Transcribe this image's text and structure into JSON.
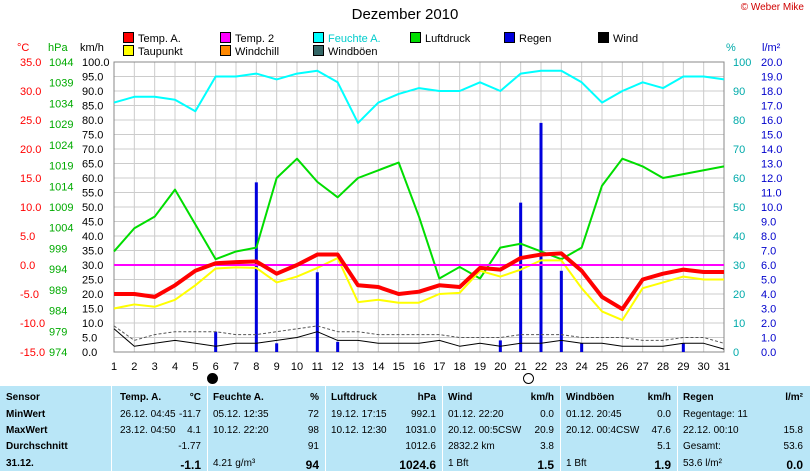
{
  "title": "Dezember 2010",
  "credit": "© Weber Mike",
  "legend": [
    {
      "label": "Temp. A.",
      "color": "#ff0000"
    },
    {
      "label": "Temp. 2",
      "color": "#ff00ff"
    },
    {
      "label": "Feuchte A.",
      "color": "#00ffff"
    },
    {
      "label": "Luftdruck",
      "color": "#00dd00"
    },
    {
      "label": "Regen",
      "color": "#0000dd"
    },
    {
      "label": "Wind",
      "color": "#000000"
    },
    {
      "label": "Taupunkt",
      "color": "#ffff00"
    },
    {
      "label": "Windchill",
      "color": "#ff8800"
    },
    {
      "label": "Windböen",
      "color": "#336666"
    }
  ],
  "axis_units": {
    "temp": "°C",
    "pressure": "hPa",
    "wind": "km/h",
    "humidity": "%",
    "rain": "l/m²"
  },
  "chart_data": {
    "type": "line",
    "title": "Dezember 2010",
    "x": [
      1,
      2,
      3,
      4,
      5,
      6,
      7,
      8,
      9,
      10,
      11,
      12,
      13,
      14,
      15,
      16,
      17,
      18,
      19,
      20,
      21,
      22,
      23,
      24,
      25,
      26,
      27,
      28,
      29,
      30,
      31
    ],
    "axes": {
      "temp": {
        "range": [
          -15,
          35
        ],
        "ticks": [
          "35.0",
          "30.0",
          "25.0",
          "20.0",
          "15.0",
          "10.0",
          "5.0",
          "0.0",
          "-5.0",
          "-10.0",
          "-15.0"
        ]
      },
      "pressure": {
        "range": [
          974,
          1049
        ],
        "ticks": [
          "1044",
          "1039",
          "1034",
          "1029",
          "1024",
          "1019",
          "1014",
          "1009",
          "1004",
          "999",
          "994",
          "989",
          "984",
          "979",
          "974"
        ]
      },
      "wind": {
        "range": [
          0,
          100
        ],
        "ticks": [
          "100.0",
          "95.0",
          "90.0",
          "85.0",
          "80.0",
          "75.0",
          "70.0",
          "65.0",
          "60.0",
          "55.0",
          "50.0",
          "45.0",
          "40.0",
          "35.0",
          "30.0",
          "25.0",
          "20.0",
          "15.0",
          "10.0",
          "5.0",
          "0.0"
        ]
      },
      "humidity": {
        "range": [
          0,
          100
        ],
        "ticks": [
          "100",
          "90",
          "80",
          "70",
          "60",
          "50",
          "40",
          "30",
          "20",
          "10",
          "0"
        ]
      },
      "rain": {
        "range": [
          0,
          20
        ],
        "ticks": [
          "20.0",
          "19.0",
          "18.0",
          "17.0",
          "16.0",
          "15.0",
          "14.0",
          "13.0",
          "12.0",
          "11.0",
          "10.0",
          "9.0",
          "8.0",
          "7.0",
          "6.0",
          "5.0",
          "4.0",
          "3.0",
          "2.0",
          "1.0",
          "0.0"
        ]
      }
    },
    "series": [
      {
        "name": "Luftdruck",
        "axis": "pressure",
        "color": "#00dd00",
        "values": [
          1000,
          1006,
          1009,
          1016,
          1007,
          998,
          1000,
          1001,
          1019,
          1024,
          1018,
          1014,
          1019,
          1021,
          1023,
          1009,
          993,
          996,
          993,
          1001,
          1002,
          1000,
          998,
          1001,
          1017,
          1024,
          1022,
          1019,
          1020,
          1021,
          1022
        ]
      },
      {
        "name": "Feuchte A.",
        "axis": "humidity",
        "color": "#00ffff",
        "values": [
          86,
          88,
          88,
          87,
          83,
          95,
          95,
          96,
          94,
          96,
          97,
          93,
          79,
          86,
          89,
          91,
          90,
          90,
          93,
          90,
          96,
          97,
          97,
          93,
          86,
          90,
          93,
          91,
          95,
          95,
          94
        ]
      },
      {
        "name": "Taupunkt",
        "axis": "temp",
        "color": "#ffff00",
        "values": [
          -7.5,
          -6.8,
          -7.2,
          -6,
          -3.5,
          -0.6,
          -0.4,
          -0.5,
          -3,
          -2,
          -0.5,
          1.2,
          -6.4,
          -6,
          -6.5,
          -6.5,
          -5,
          -4.8,
          -1,
          -2,
          -0.8,
          0.8,
          0.8,
          -4,
          -8,
          -9.5,
          -4,
          -3,
          -2,
          -2.5,
          -2.5
        ]
      },
      {
        "name": "Temp. A.",
        "axis": "temp",
        "color": "#ff0000",
        "values": [
          -5,
          -5,
          -5.5,
          -3.5,
          -1,
          0.3,
          0.5,
          0.6,
          -1.5,
          0,
          1.8,
          1.8,
          -3.5,
          -3.8,
          -5,
          -4.6,
          -3.5,
          -3.8,
          -0.5,
          -0.8,
          1.2,
          1.8,
          2,
          -1,
          -5.5,
          -7.6,
          -2.5,
          -1.5,
          -0.8,
          -1.2,
          -1.2
        ]
      },
      {
        "name": "Temp. 2",
        "axis": "temp",
        "color": "#ff00ff",
        "values": [
          0,
          0,
          0,
          0,
          0,
          0,
          0,
          0,
          0,
          0,
          0,
          0,
          0,
          0,
          0,
          0,
          0,
          0,
          0,
          0,
          0,
          0,
          0,
          0,
          0,
          0,
          0,
          0,
          0,
          0,
          0
        ]
      },
      {
        "name": "Windböen",
        "axis": "wind",
        "color": "#555555",
        "values": [
          9,
          4,
          6,
          7,
          7,
          7,
          6,
          6,
          7,
          8,
          9,
          7,
          7,
          6,
          6,
          6,
          6,
          5,
          5,
          5,
          6,
          6,
          6,
          5,
          5,
          5,
          4,
          4,
          5,
          5,
          3
        ]
      },
      {
        "name": "Wind",
        "axis": "wind",
        "color": "#000000",
        "values": [
          8,
          2,
          3,
          4,
          3,
          2,
          3,
          3,
          4,
          5,
          7,
          4,
          4,
          3,
          3,
          3,
          4,
          2,
          3,
          2,
          3,
          3,
          4,
          3,
          3,
          2,
          2,
          2,
          3,
          3,
          1
        ]
      },
      {
        "name": "Regen",
        "axis": "rain",
        "color": "#0000dd",
        "type": "bar",
        "values": [
          0,
          0,
          0,
          0,
          0,
          1.4,
          0,
          11.7,
          0.6,
          0,
          5.5,
          0.7,
          0,
          0,
          0,
          0,
          0,
          0,
          0,
          0.8,
          10.3,
          15.8,
          5.6,
          0.6,
          0,
          0,
          0,
          0,
          0.6,
          0,
          0
        ]
      }
    ]
  },
  "stats": {
    "headers": {
      "sensor": "Sensor",
      "temp": "Temp. A.",
      "temp_unit": "°C",
      "hum": "Feuchte A.",
      "hum_unit": "%",
      "press": "Luftdruck",
      "press_unit": "hPa",
      "wind": "Wind",
      "wind_unit": "km/h",
      "gust": "Windböen",
      "gust_unit": "km/h",
      "rain": "Regen",
      "rain_unit": "l/m²"
    },
    "rows": [
      {
        "label": "MinWert",
        "temp_t": "26.12.  04:45",
        "temp_v": "-11.7",
        "hum_t": "05.12.  12:35",
        "hum_v": "72",
        "press_t": "19.12.  17:15",
        "press_v": "992.1",
        "wind_t": "01.12.  22:20",
        "wind_v": "0.0",
        "gust_t": "01.12.  20:45",
        "gust_v": "0.0",
        "rain_t": "Regentage: 11",
        "rain_v": ""
      },
      {
        "label": "MaxWert",
        "temp_t": "23.12.  04:50",
        "temp_v": "4.1",
        "hum_t": "10.12.  22:20",
        "hum_v": "98",
        "press_t": "10.12.  12:30",
        "press_v": "1031.0",
        "wind_t": "20.12.  00:5CSW",
        "wind_v": "20.9",
        "gust_t": "20.12.  00:4CSW",
        "gust_v": "47.6",
        "rain_t": "22.12.  00:10",
        "rain_v": "15.8"
      },
      {
        "label": "Durchschnitt",
        "temp_t": "",
        "temp_v": "-1.77",
        "hum_t": "",
        "hum_v": "91",
        "press_t": "",
        "press_v": "1012.6",
        "wind_t": "2832.2 km",
        "wind_v": "3.8",
        "gust_t": "",
        "gust_v": "5.1",
        "rain_t": "Gesamt:",
        "rain_v": "53.6"
      },
      {
        "label": "31.12.",
        "temp_t": "",
        "temp_v": "-1.1",
        "hum_t": "4.21 g/m³",
        "hum_v": "94",
        "press_t": "",
        "press_v": "1024.6",
        "wind_t": "1 Bft",
        "wind_v": "1.5",
        "gust_t": "1 Bft",
        "gust_v": "1.9",
        "rain_t": "53.6 l/m²",
        "rain_v": "0.0"
      }
    ]
  }
}
